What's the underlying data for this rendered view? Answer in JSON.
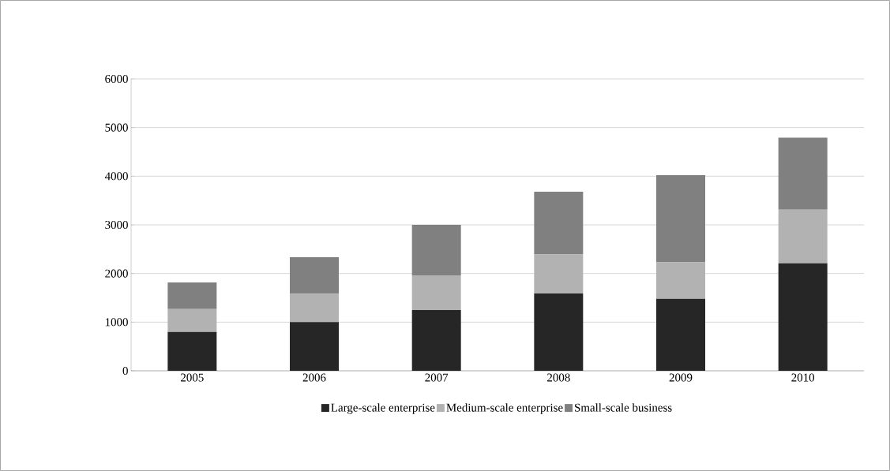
{
  "chart_data": {
    "type": "bar",
    "stacked": true,
    "categories": [
      "2005",
      "2006",
      "2007",
      "2008",
      "2009",
      "2010"
    ],
    "series": [
      {
        "name": "Large-scale  enterprise",
        "color": "#262626",
        "values": [
          800,
          1000,
          1250,
          1590,
          1480,
          2210
        ]
      },
      {
        "name": "Medium-scale  enterprise",
        "color": "#b2b2b2",
        "values": [
          470,
          585,
          710,
          800,
          750,
          1100
        ]
      },
      {
        "name": "Small-scale business",
        "color": "#808080",
        "values": [
          545,
          750,
          1040,
          1290,
          1790,
          1480
        ]
      }
    ],
    "ylim": [
      0,
      6000
    ],
    "yticks": [
      0,
      1000,
      2000,
      3000,
      4000,
      5000,
      6000
    ],
    "grid": "y",
    "legend": "bottom"
  }
}
